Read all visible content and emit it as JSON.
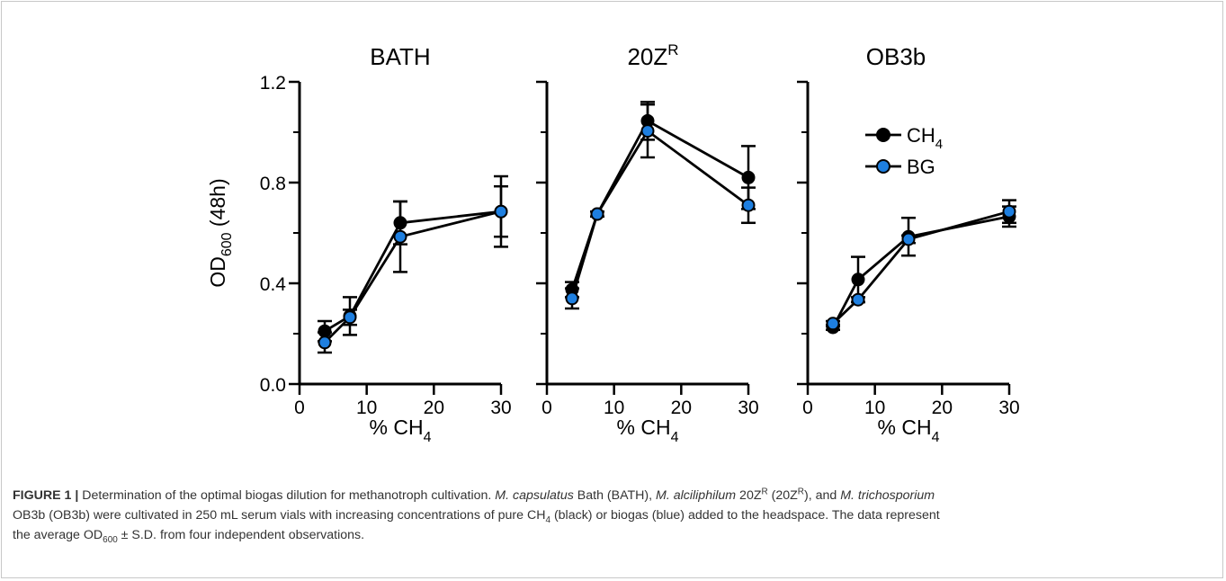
{
  "chart_data": [
    {
      "type": "line",
      "title": "BATH",
      "xlabel": "% CH4",
      "ylabel": "OD600 (48h)",
      "xlim": [
        0,
        30
      ],
      "ylim": [
        0,
        1.2
      ],
      "x_ticks": [
        "0",
        "10",
        "20",
        "30"
      ],
      "y_ticks": [
        "0.0",
        "0.4",
        "0.8",
        "1.2"
      ],
      "x": [
        3.75,
        7.5,
        15,
        30
      ],
      "series": [
        {
          "name": "CH4",
          "color": "#000000",
          "values": [
            0.21,
            0.27,
            0.64,
            0.685
          ],
          "error": [
            0.04,
            0.075,
            0.085,
            0.14
          ]
        },
        {
          "name": "BG",
          "color": "#1e7fe0",
          "values": [
            0.165,
            0.265,
            0.585,
            0.685
          ],
          "error": [
            0.04,
            0.03,
            0.14,
            0.1
          ]
        }
      ]
    },
    {
      "type": "line",
      "title": "20Z",
      "title_sup": "R",
      "xlabel": "% CH4",
      "xlim": [
        0,
        30
      ],
      "ylim": [
        0,
        1.2
      ],
      "x_ticks": [
        "0",
        "10",
        "20",
        "30"
      ],
      "x": [
        3.75,
        7.5,
        15,
        30
      ],
      "series": [
        {
          "name": "CH4",
          "color": "#000000",
          "values": [
            0.375,
            0.675,
            1.045,
            0.82
          ],
          "error": [
            0.03,
            0.01,
            0.075,
            0.125
          ]
        },
        {
          "name": "BG",
          "color": "#1e7fe0",
          "values": [
            0.34,
            0.675,
            1.005,
            0.71
          ],
          "error": [
            0.04,
            0.01,
            0.105,
            0.07
          ]
        }
      ]
    },
    {
      "type": "line",
      "title": "OB3b",
      "xlabel": "% CH4",
      "xlim": [
        0,
        30
      ],
      "ylim": [
        0,
        1.2
      ],
      "x_ticks": [
        "0",
        "10",
        "20",
        "30"
      ],
      "x": [
        3.75,
        7.5,
        15,
        30
      ],
      "legend": [
        {
          "name": "CH",
          "sub": "4",
          "color": "#000000"
        },
        {
          "name": "BG",
          "sub": "",
          "color": "#1e7fe0"
        }
      ],
      "legend_position": "top-right",
      "series": [
        {
          "name": "CH4",
          "color": "#000000",
          "values": [
            0.225,
            0.415,
            0.585,
            0.665
          ],
          "error": [
            0.01,
            0.09,
            0.075,
            0.04
          ]
        },
        {
          "name": "BG",
          "color": "#1e7fe0",
          "values": [
            0.24,
            0.335,
            0.575,
            0.685
          ],
          "error": [
            0.01,
            0.01,
            0.015,
            0.045
          ]
        }
      ]
    }
  ],
  "caption": {
    "label": "FIGURE 1 |",
    "text": "Determination of the optimal biogas dilution for methanotroph cultivation. M. capsulatus Bath (BATH), M. alciliphilum 20ZR (20ZR), and M. trichosporium OB3b (OB3b) were cultivated in 250 mL serum vials with increasing concentrations of pure CH4 (black) or biogas (blue) added to the headspace. The data represent the average OD600 ± S.D. from four independent observations.",
    "line1_a": "Determination of the optimal biogas dilution for methanotroph cultivation. ",
    "species1": "M. capsulatus",
    "line1_b": " Bath (BATH), ",
    "species2": "M. alciliphilum",
    "line1_c": " 20Z",
    "sup_r": "R",
    "line1_d": " (20Z",
    "line1_e": "), and ",
    "species3": "M. trichosporium",
    "line2_a": "OB3b (OB3b) were cultivated in 250 mL serum vials with increasing concentrations of pure CH",
    "sub_4": "4",
    "line2_b": " (black) or biogas (blue) added to the headspace. The data represent",
    "line3_a": "the average OD",
    "sub_600": "600",
    "line3_b": " ± S.D. from four independent observations."
  }
}
